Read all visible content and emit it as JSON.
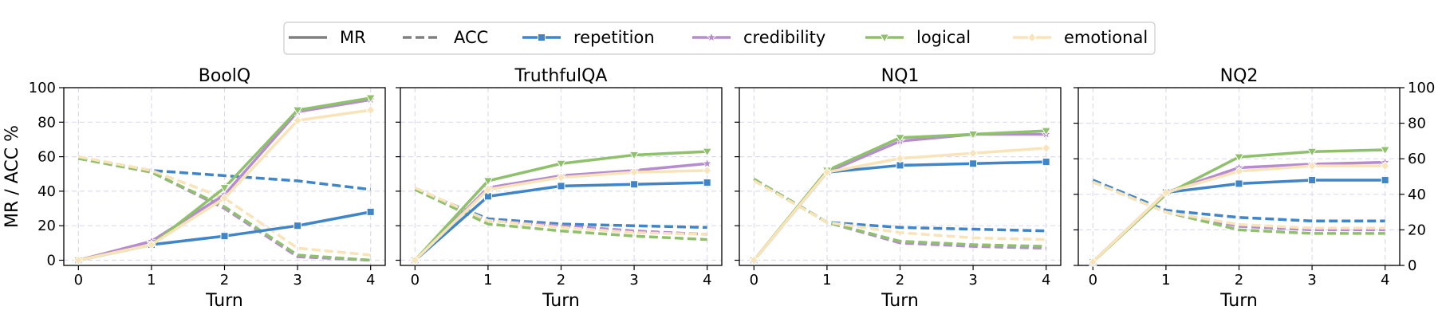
{
  "legend": {
    "items": [
      {
        "label": "MR",
        "color": "#808080",
        "dash": "solid",
        "marker": "none"
      },
      {
        "label": "ACC",
        "color": "#808080",
        "dash": "dashed",
        "marker": "none"
      },
      {
        "label": "repetition",
        "color": "#3f85c7",
        "dash": "solid",
        "marker": "square"
      },
      {
        "label": "credibility",
        "color": "#b68bcf",
        "dash": "solid",
        "marker": "star"
      },
      {
        "label": "logical",
        "color": "#8fc06c",
        "dash": "solid",
        "marker": "triangle-down"
      },
      {
        "label": "emotional",
        "color": "#f9e3b8",
        "dash": "solid",
        "marker": "diamond"
      }
    ]
  },
  "chart_data": [
    {
      "type": "line",
      "title": "BoolQ",
      "xlabel": "Turn",
      "ylabel": "MR / ACC %",
      "x": [
        0,
        1,
        2,
        3,
        4
      ],
      "xticks": [
        "0",
        "1",
        "2",
        "3",
        "4"
      ],
      "yticks": [
        "0",
        "20",
        "40",
        "60",
        "80",
        "100"
      ],
      "ylim": [
        -3,
        100
      ],
      "y_axis_side": "left",
      "grid": true,
      "series": [
        {
          "name": "repetition",
          "metric": "MR",
          "values": [
            0,
            9,
            14,
            20,
            28
          ]
        },
        {
          "name": "credibility",
          "metric": "MR",
          "values": [
            0,
            11,
            38,
            86,
            93
          ]
        },
        {
          "name": "logical",
          "metric": "MR",
          "values": [
            0,
            9,
            42,
            87,
            94
          ]
        },
        {
          "name": "emotional",
          "metric": "MR",
          "values": [
            0,
            9,
            36,
            81,
            87
          ]
        },
        {
          "name": "repetition",
          "metric": "ACC",
          "values": [
            59,
            52,
            49,
            46,
            41
          ]
        },
        {
          "name": "credibility",
          "metric": "ACC",
          "values": [
            59,
            51,
            30,
            2,
            0
          ]
        },
        {
          "name": "logical",
          "metric": "ACC",
          "values": [
            59,
            51,
            31,
            3,
            0
          ]
        },
        {
          "name": "emotional",
          "metric": "ACC",
          "values": [
            60,
            52,
            36,
            7,
            3
          ]
        }
      ]
    },
    {
      "type": "line",
      "title": "TruthfulQA",
      "xlabel": "Turn",
      "ylabel": "",
      "x": [
        0,
        1,
        2,
        3,
        4
      ],
      "xticks": [
        "0",
        "1",
        "2",
        "3",
        "4"
      ],
      "yticks": [],
      "ylim": [
        -3,
        100
      ],
      "y_axis_side": "none",
      "grid": true,
      "series": [
        {
          "name": "repetition",
          "metric": "MR",
          "values": [
            0,
            37,
            43,
            44,
            45
          ]
        },
        {
          "name": "credibility",
          "metric": "MR",
          "values": [
            0,
            42,
            49,
            52,
            56
          ]
        },
        {
          "name": "logical",
          "metric": "MR",
          "values": [
            0,
            46,
            56,
            61,
            63
          ]
        },
        {
          "name": "emotional",
          "metric": "MR",
          "values": [
            0,
            41,
            48,
            51,
            52
          ]
        },
        {
          "name": "repetition",
          "metric": "ACC",
          "values": [
            41,
            24,
            21,
            20,
            19
          ]
        },
        {
          "name": "credibility",
          "metric": "ACC",
          "values": [
            41,
            23,
            20,
            17,
            15
          ]
        },
        {
          "name": "logical",
          "metric": "ACC",
          "values": [
            41,
            21,
            17,
            14,
            12
          ]
        },
        {
          "name": "emotional",
          "metric": "ACC",
          "values": [
            42,
            23,
            19,
            16,
            15
          ]
        }
      ]
    },
    {
      "type": "line",
      "title": "NQ1",
      "xlabel": "Turn",
      "ylabel": "",
      "x": [
        0,
        1,
        2,
        3,
        4
      ],
      "xticks": [
        "0",
        "1",
        "2",
        "3",
        "4"
      ],
      "yticks": [],
      "ylim": [
        -3,
        100
      ],
      "y_axis_side": "none",
      "grid": true,
      "series": [
        {
          "name": "repetition",
          "metric": "MR",
          "values": [
            0,
            51,
            55,
            56,
            57
          ]
        },
        {
          "name": "credibility",
          "metric": "MR",
          "values": [
            0,
            51,
            69,
            73,
            73
          ]
        },
        {
          "name": "logical",
          "metric": "MR",
          "values": [
            0,
            52,
            71,
            73,
            75
          ]
        },
        {
          "name": "emotional",
          "metric": "MR",
          "values": [
            0,
            51,
            59,
            62,
            65
          ]
        },
        {
          "name": "repetition",
          "metric": "ACC",
          "values": [
            47,
            22,
            19,
            18,
            17
          ]
        },
        {
          "name": "credibility",
          "metric": "ACC",
          "values": [
            47,
            22,
            10,
            8,
            7
          ]
        },
        {
          "name": "logical",
          "metric": "ACC",
          "values": [
            47,
            22,
            11,
            9,
            8
          ]
        },
        {
          "name": "emotional",
          "metric": "ACC",
          "values": [
            46,
            22,
            16,
            13,
            12
          ]
        }
      ]
    },
    {
      "type": "line",
      "title": "NQ2",
      "xlabel": "Turn",
      "ylabel": "",
      "x": [
        0,
        1,
        2,
        3,
        4
      ],
      "xticks": [
        "0",
        "1",
        "2",
        "3",
        "4"
      ],
      "yticks": [
        "0",
        "20",
        "40",
        "60",
        "80",
        "100"
      ],
      "ylim": [
        0,
        100
      ],
      "y_axis_side": "right",
      "grid": true,
      "series": [
        {
          "name": "repetition",
          "metric": "MR",
          "values": [
            2,
            41,
            46,
            48,
            48
          ]
        },
        {
          "name": "credibility",
          "metric": "MR",
          "values": [
            2,
            41,
            55,
            57,
            58
          ]
        },
        {
          "name": "logical",
          "metric": "MR",
          "values": [
            2,
            40,
            61,
            64,
            65
          ]
        },
        {
          "name": "emotional",
          "metric": "MR",
          "values": [
            2,
            41,
            53,
            56,
            56
          ]
        },
        {
          "name": "repetition",
          "metric": "ACC",
          "values": [
            48,
            31,
            27,
            25,
            25
          ]
        },
        {
          "name": "credibility",
          "metric": "ACC",
          "values": [
            47,
            30,
            22,
            20,
            20
          ]
        },
        {
          "name": "logical",
          "metric": "ACC",
          "values": [
            47,
            30,
            20,
            18,
            18
          ]
        },
        {
          "name": "emotional",
          "metric": "ACC",
          "values": [
            47,
            30,
            23,
            21,
            21
          ]
        }
      ]
    }
  ]
}
